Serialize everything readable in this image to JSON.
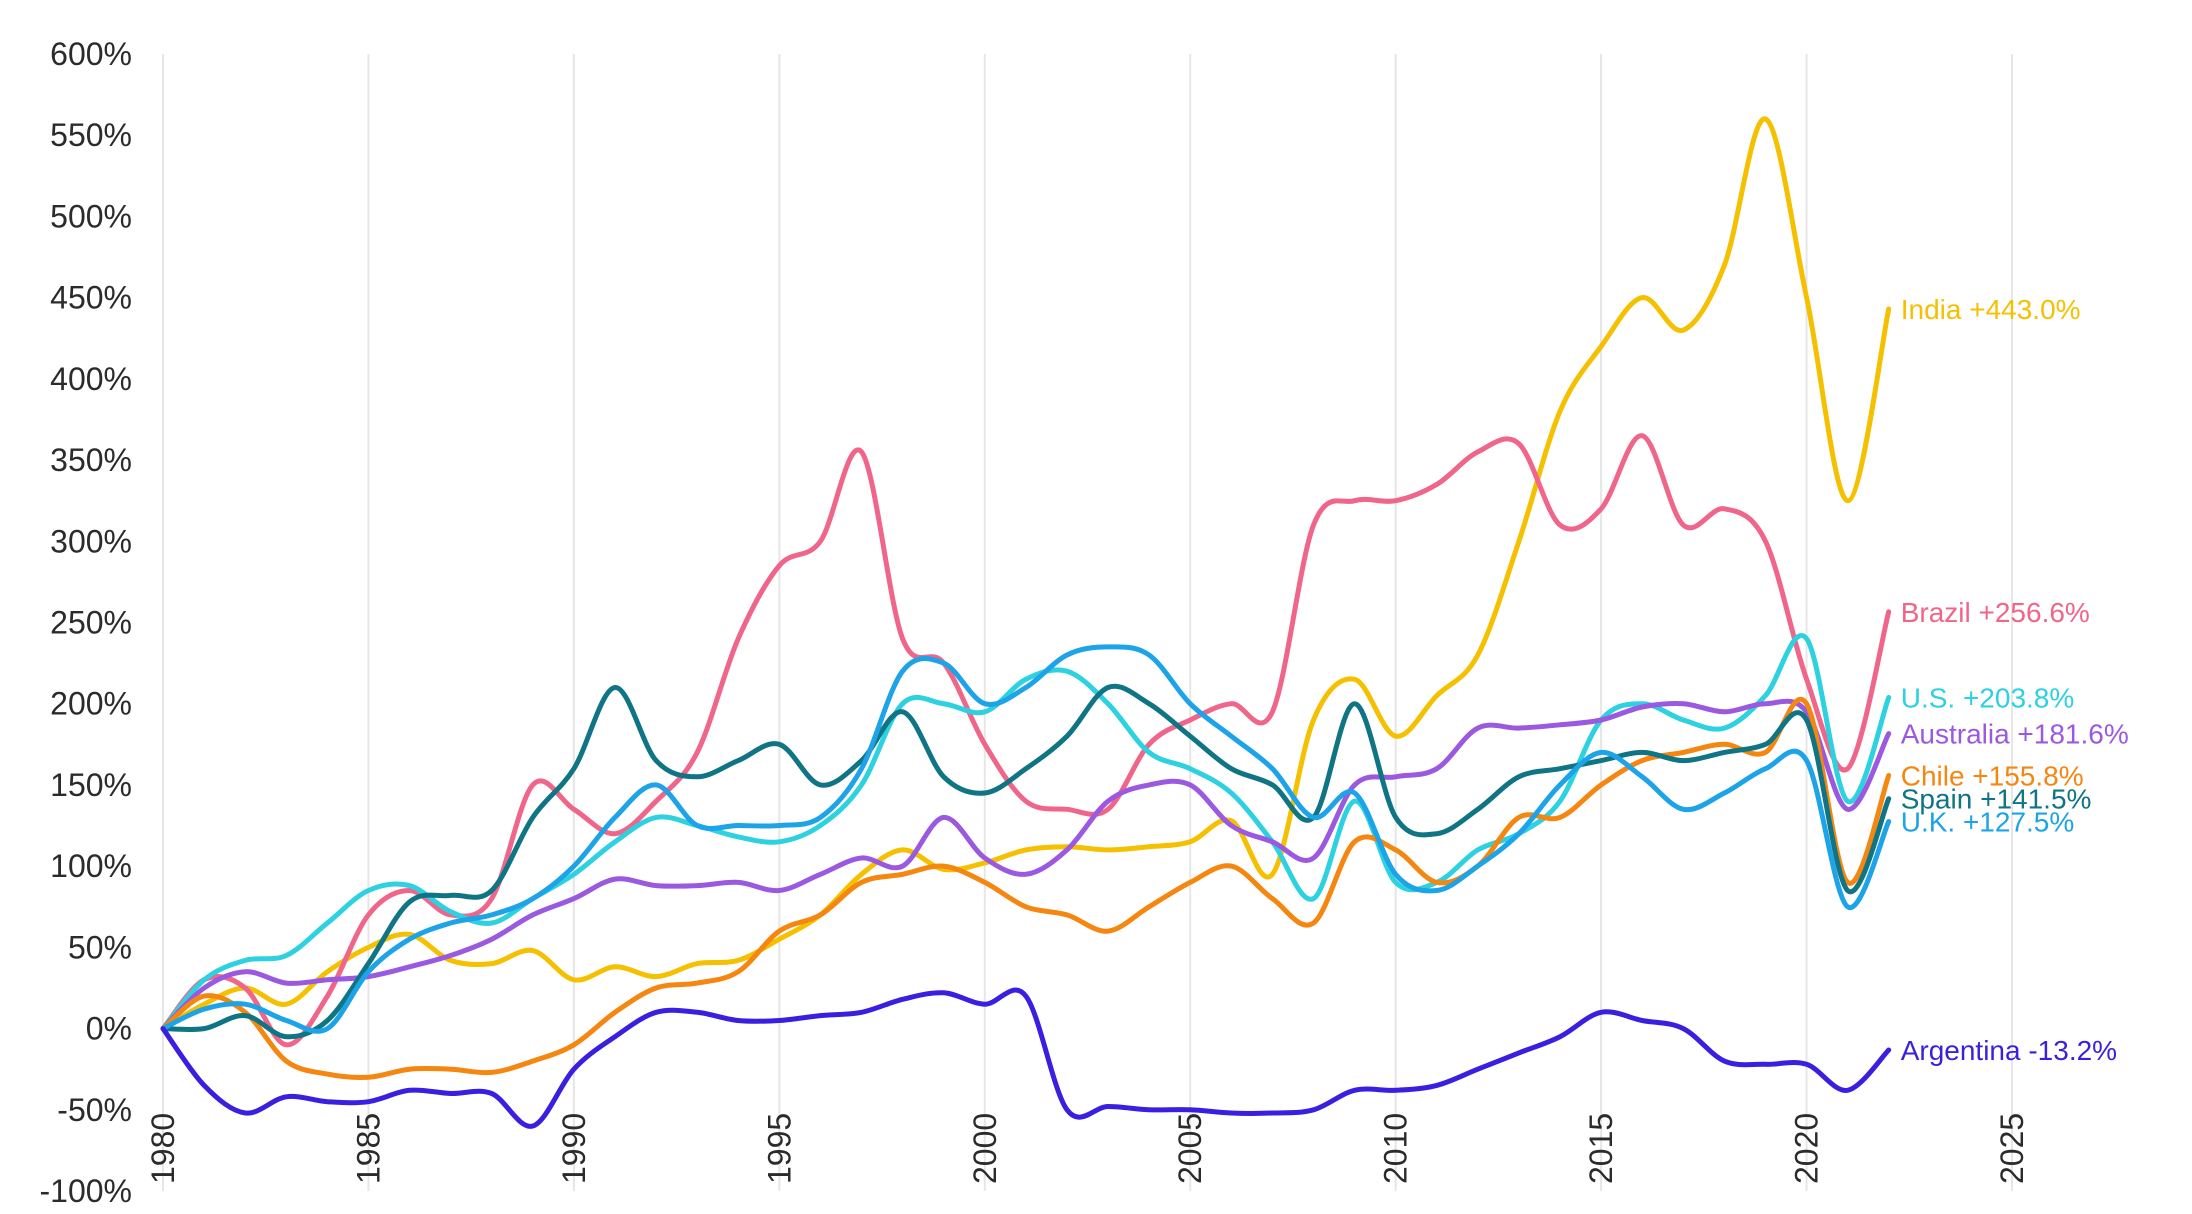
{
  "chart_data": {
    "type": "line",
    "title": "",
    "xlabel": "",
    "ylabel": "",
    "xlim": [
      1980,
      2025
    ],
    "ylim": [
      -100,
      600
    ],
    "grid": "vertical",
    "x_ticks": [
      "1980",
      "1985",
      "1990",
      "1995",
      "2000",
      "2005",
      "2010",
      "2015",
      "2020",
      "2025"
    ],
    "y_ticks": [
      "600%",
      "550%",
      "500%",
      "450%",
      "400%",
      "350%",
      "300%",
      "250%",
      "200%",
      "150%",
      "100%",
      "50%",
      "0%",
      "-50%",
      "-100%"
    ],
    "x": [
      1980,
      1981,
      1982,
      1983,
      1984,
      1985,
      1986,
      1987,
      1988,
      1989,
      1990,
      1991,
      1992,
      1993,
      1994,
      1995,
      1996,
      1997,
      1998,
      1999,
      2000,
      2001,
      2002,
      2003,
      2004,
      2005,
      2006,
      2007,
      2008,
      2009,
      2010,
      2011,
      2012,
      2013,
      2014,
      2015,
      2016,
      2017,
      2018,
      2019,
      2020,
      2021,
      2022
    ],
    "series": [
      {
        "name": "India",
        "label": "India +443.0%",
        "color": "#f5c000",
        "values": [
          0,
          15,
          25,
          15,
          35,
          50,
          58,
          42,
          40,
          48,
          30,
          38,
          32,
          40,
          42,
          55,
          70,
          95,
          110,
          98,
          102,
          110,
          112,
          110,
          112,
          115,
          128,
          95,
          190,
          215,
          180,
          205,
          230,
          300,
          380,
          420,
          450,
          430,
          470,
          560,
          450,
          325,
          443
        ]
      },
      {
        "name": "Brazil",
        "label": "Brazil +256.6%",
        "color": "#f0658a",
        "values": [
          0,
          30,
          25,
          -10,
          20,
          70,
          85,
          70,
          80,
          150,
          135,
          120,
          140,
          170,
          240,
          285,
          300,
          355,
          240,
          225,
          175,
          140,
          135,
          135,
          175,
          190,
          200,
          195,
          310,
          325,
          325,
          335,
          355,
          360,
          310,
          320,
          365,
          310,
          320,
          300,
          215,
          160,
          256.6
        ]
      },
      {
        "name": "U.S.",
        "label": "U.S. +203.8%",
        "color": "#2dd1e0",
        "values": [
          0,
          30,
          42,
          45,
          65,
          85,
          88,
          72,
          65,
          80,
          95,
          115,
          130,
          125,
          118,
          115,
          125,
          150,
          200,
          200,
          195,
          215,
          220,
          200,
          170,
          160,
          145,
          115,
          80,
          140,
          90,
          90,
          110,
          120,
          140,
          190,
          200,
          190,
          185,
          205,
          240,
          140,
          203.8
        ]
      },
      {
        "name": "Australia",
        "label": "Australia +181.6%",
        "color": "#9b59e0",
        "values": [
          0,
          25,
          35,
          28,
          30,
          32,
          38,
          45,
          55,
          70,
          80,
          92,
          88,
          88,
          90,
          85,
          95,
          105,
          100,
          130,
          105,
          95,
          110,
          140,
          150,
          150,
          125,
          115,
          105,
          150,
          155,
          160,
          185,
          185,
          187,
          190,
          198,
          200,
          195,
          200,
          195,
          135,
          181.6
        ]
      },
      {
        "name": "Chile",
        "label": "Chile +155.8%",
        "color": "#f5860f",
        "values": [
          0,
          20,
          10,
          -20,
          -28,
          -30,
          -25,
          -25,
          -27,
          -20,
          -10,
          10,
          25,
          28,
          35,
          60,
          70,
          90,
          95,
          100,
          90,
          75,
          70,
          60,
          75,
          90,
          100,
          80,
          65,
          115,
          110,
          90,
          100,
          130,
          130,
          150,
          165,
          170,
          175,
          170,
          200,
          90,
          155.8
        ]
      },
      {
        "name": "Spain",
        "label": "Spain +141.5%",
        "color": "#0f7585",
        "values": [
          0,
          0,
          8,
          -5,
          5,
          40,
          78,
          82,
          85,
          130,
          160,
          210,
          165,
          155,
          165,
          175,
          150,
          165,
          195,
          155,
          145,
          160,
          180,
          210,
          200,
          180,
          160,
          150,
          130,
          200,
          130,
          120,
          135,
          155,
          160,
          165,
          170,
          165,
          170,
          175,
          190,
          85,
          141.5
        ]
      },
      {
        "name": "U.K.",
        "label": "U.K. +127.5%",
        "color": "#1da3e8",
        "values": [
          0,
          12,
          15,
          5,
          0,
          35,
          55,
          65,
          70,
          80,
          100,
          130,
          150,
          125,
          125,
          125,
          130,
          160,
          220,
          225,
          200,
          210,
          230,
          235,
          230,
          200,
          180,
          160,
          130,
          145,
          95,
          85,
          100,
          120,
          150,
          170,
          155,
          135,
          145,
          160,
          165,
          75,
          127.5
        ]
      },
      {
        "name": "Argentina",
        "label": "Argentina -13.2%",
        "color": "#3a1fe0",
        "values": [
          0,
          -35,
          -52,
          -42,
          -45,
          -45,
          -38,
          -40,
          -40,
          -60,
          -25,
          -5,
          10,
          10,
          5,
          5,
          8,
          10,
          18,
          22,
          15,
          20,
          -50,
          -48,
          -50,
          -50,
          -52,
          -52,
          -50,
          -38,
          -38,
          -35,
          -25,
          -15,
          -5,
          10,
          5,
          0,
          -20,
          -22,
          -22,
          -38,
          -13.2
        ]
      }
    ]
  }
}
